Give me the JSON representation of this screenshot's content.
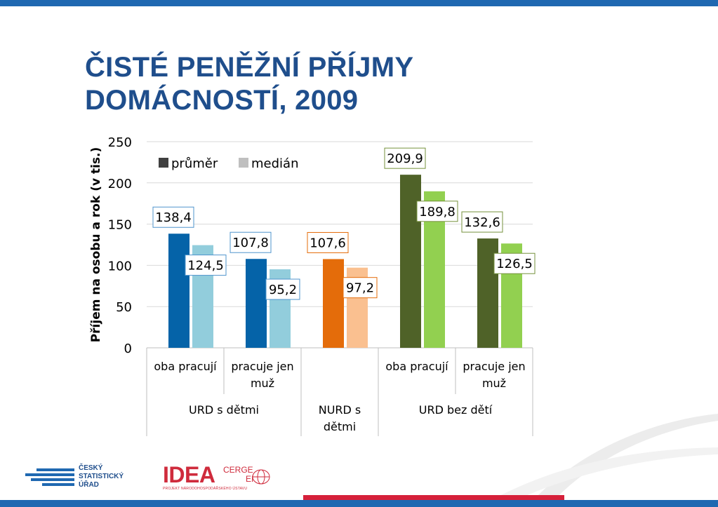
{
  "slide": {
    "title_line1": "ČISTÉ PENĚŽNÍ PŘÍJMY",
    "title_line2": "DOMÁCNOSTÍ, 2009"
  },
  "logos": {
    "csu_line1": "ČESKÝ",
    "csu_line2": "STATISTICKÝ",
    "csu_line3": "ÚŘAD",
    "idea_word": "IDEA",
    "idea_cerge": "CERGE",
    "idea_ei": "EI",
    "idea_sub": "PROJEKT NÁRODOHOSPODÁŘSKÉHO ÚSTAVU"
  },
  "chart_data": {
    "type": "bar",
    "title": "",
    "ylabel": "Příjem na osobu a rok (v tis.)",
    "xlabel": "",
    "ylim": [
      0,
      250
    ],
    "yticks": [
      0,
      50,
      100,
      150,
      200,
      250
    ],
    "grid": true,
    "legend_position": "top-left",
    "legend": [
      {
        "label": "průměr",
        "color": "#404040"
      },
      {
        "label": "medián",
        "color": "#bfbfbf"
      }
    ],
    "categories": [
      {
        "label": [
          "oba pracují"
        ],
        "group": 0,
        "mean": 138.4,
        "median": 124.5,
        "mean_label": "138,4",
        "median_label": "124,5",
        "mean_color": "#0563a8",
        "median_color": "#92cddc",
        "label_border": "#4f94cd"
      },
      {
        "label": [
          "pracuje jen",
          "muž"
        ],
        "group": 0,
        "mean": 107.8,
        "median": 95.2,
        "mean_label": "107,8",
        "median_label": "95,2",
        "mean_color": "#0563a8",
        "median_color": "#92cddc",
        "label_border": "#4f94cd"
      },
      {
        "label": [],
        "group": 1,
        "mean": 107.6,
        "median": 97.2,
        "mean_label": "107,6",
        "median_label": "97,2",
        "mean_color": "#e46c0a",
        "median_color": "#fac090",
        "label_border": "#e46c0a"
      },
      {
        "label": [
          "oba pracují"
        ],
        "group": 2,
        "mean": 209.9,
        "median": 189.8,
        "mean_label": "209,9",
        "median_label": "189,8",
        "mean_color": "#4f6228",
        "median_color": "#92d050",
        "label_border": "#76923c"
      },
      {
        "label": [
          "pracuje jen",
          "muž"
        ],
        "group": 2,
        "mean": 132.6,
        "median": 126.5,
        "mean_label": "132,6",
        "median_label": "126,5",
        "mean_color": "#4f6228",
        "median_color": "#92d050",
        "label_border": "#76923c"
      }
    ],
    "groups": [
      {
        "label": [
          "URD s dětmi"
        ]
      },
      {
        "label": [
          "NURD s",
          "dětmi"
        ]
      },
      {
        "label": [
          "URD bez dětí"
        ]
      }
    ]
  }
}
